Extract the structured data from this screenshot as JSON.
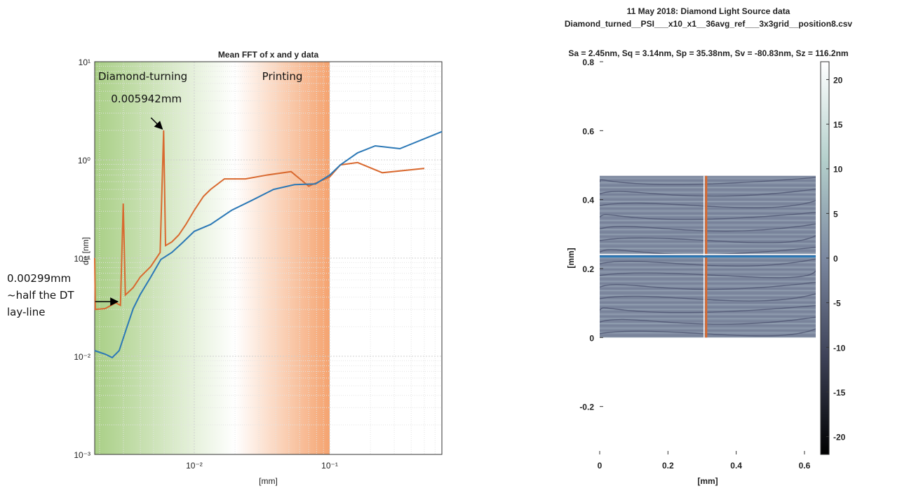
{
  "chart_data": [
    {
      "type": "line",
      "title": "Mean FFT of x and y data",
      "xlabel": "[mm]",
      "ylabel": "de [nm]",
      "xscale": "log",
      "yscale": "log",
      "xlim": [
        0.00184,
        0.674
      ],
      "ylim": [
        0.001,
        10
      ],
      "xticks": [
        {
          "value": 0.01,
          "label": "10⁻²"
        },
        {
          "value": 0.1,
          "label": "10⁻¹"
        }
      ],
      "yticks": [
        {
          "value": 0.001,
          "label": "10⁻³"
        },
        {
          "value": 0.01,
          "label": "10⁻²"
        },
        {
          "value": 0.1,
          "label": "10⁻¹"
        },
        {
          "value": 1,
          "label": "10⁰"
        },
        {
          "value": 10,
          "label": "10¹"
        }
      ],
      "grid": true,
      "regions": [
        {
          "label": "Diamond-turning",
          "x0": 0.00184,
          "x1": 0.02,
          "colors": [
            "#a9cf86",
            "#ffffff"
          ]
        },
        {
          "label": "Printing",
          "x0": 0.02,
          "x1": 0.1,
          "colors": [
            "#ffffff",
            "#f5a36f"
          ]
        }
      ],
      "annotations": [
        {
          "text": [
            "0.005942mm"
          ],
          "x": 0.005942,
          "y": 2.0
        },
        {
          "text": [
            "0.00299mm",
            "~half the DT",
            "lay-line"
          ],
          "x": 0.00299,
          "y": 0.036
        }
      ],
      "series": [
        {
          "color": "#d9692f",
          "x": [
            0.00184,
            0.00186,
            0.0022,
            0.00263,
            0.00285,
            0.00299,
            0.0031,
            0.00354,
            0.00399,
            0.00477,
            0.0056,
            0.005942,
            0.00614,
            0.00683,
            0.00769,
            0.00867,
            0.01,
            0.0117,
            0.0132,
            0.0167,
            0.0239,
            0.0342,
            0.0519,
            0.07,
            0.1,
            0.12,
            0.161,
            0.245,
            0.5
          ],
          "values": [
            0.1,
            0.03,
            0.0306,
            0.035,
            0.033,
            0.36,
            0.042,
            0.05,
            0.064,
            0.082,
            0.114,
            2.0,
            0.134,
            0.146,
            0.172,
            0.22,
            0.306,
            0.425,
            0.5,
            0.64,
            0.64,
            0.7,
            0.76,
            0.54,
            0.67,
            0.89,
            0.94,
            0.74,
            0.82
          ]
        },
        {
          "color": "#2b78b6",
          "x": [
            0.00184,
            0.0022,
            0.00248,
            0.00279,
            0.00314,
            0.00354,
            0.00399,
            0.00477,
            0.00567,
            0.00683,
            0.0083,
            0.01,
            0.0132,
            0.0188,
            0.0269,
            0.0385,
            0.0551,
            0.0787,
            0.1,
            0.12,
            0.161,
            0.217,
            0.33,
            0.674
          ],
          "values": [
            0.0114,
            0.0105,
            0.0097,
            0.0114,
            0.0187,
            0.0306,
            0.0425,
            0.064,
            0.097,
            0.114,
            0.146,
            0.187,
            0.22,
            0.306,
            0.39,
            0.5,
            0.56,
            0.57,
            0.7,
            0.89,
            1.18,
            1.39,
            1.3,
            1.94
          ]
        }
      ]
    },
    {
      "type": "heatmap",
      "title": [
        "11 May 2018: Diamond Light Source data",
        "Diamond_turned__PSI___x10_x1__36avg_ref___3x3grid__position8.csv"
      ],
      "subtitle": "Sa = 2.45nm, Sq = 3.14nm, Sp = 35.38nm, Sv = -80.83nm, Sz = 116.2nm",
      "xlabel": "[mm]",
      "ylabel": "[mm]",
      "xlim": [
        0,
        0.633
      ],
      "ylim": [
        -0.339,
        0.8
      ],
      "xticks": [
        0,
        0.2,
        0.4,
        0.6
      ],
      "yticks": [
        -0.2,
        0,
        0.2,
        0.4,
        0.6,
        0.8
      ],
      "image_xlim": [
        0,
        0.633
      ],
      "image_ylim": [
        0,
        0.469
      ],
      "cross_x": 0.312,
      "cross_x_color": "#d9692f",
      "cross_y": 0.235,
      "cross_y_color": "#2b78b6",
      "colorbar": {
        "lim": [
          -22,
          22
        ],
        "ticks": [
          -20,
          -15,
          -10,
          -5,
          0,
          5,
          10,
          15,
          20
        ],
        "colors": [
          "#000000",
          "#3e4258",
          "#7b88a0",
          "#b4d0cc",
          "#ffffff"
        ]
      }
    }
  ]
}
